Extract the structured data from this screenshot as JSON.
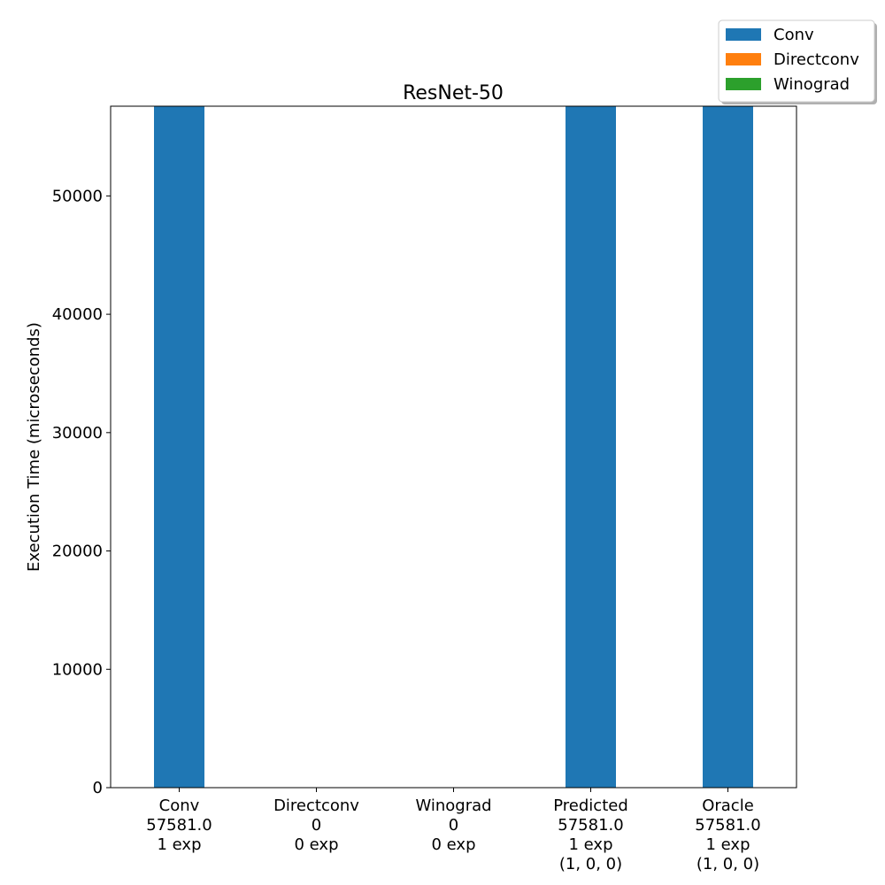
{
  "chart_data": {
    "type": "bar",
    "title": "ResNet-50",
    "xlabel": "",
    "ylabel": "Execution Time (microseconds)",
    "ylim": [
      0,
      57581
    ],
    "yticks": [
      0,
      10000,
      20000,
      30000,
      40000,
      50000
    ],
    "categories": [
      "Conv",
      "Directconv",
      "Winograd",
      "Predicted",
      "Oracle"
    ],
    "category_labels": [
      [
        "Conv",
        "57581.0",
        "1 exp"
      ],
      [
        "Directconv",
        "0",
        "0 exp"
      ],
      [
        "Winograd",
        "0",
        "0 exp"
      ],
      [
        "Predicted",
        "57581.0",
        "1 exp",
        "(1, 0, 0)"
      ],
      [
        "Oracle",
        "57581.0",
        "1 exp",
        "(1, 0, 0)"
      ]
    ],
    "stacked": true,
    "series": [
      {
        "name": "Conv",
        "color": "#1f77b4",
        "values": [
          57581,
          0,
          0,
          57581,
          57581
        ]
      },
      {
        "name": "Directconv",
        "color": "#ff7f0e",
        "values": [
          0,
          0,
          0,
          0,
          0
        ]
      },
      {
        "name": "Winograd",
        "color": "#2ca02c",
        "values": [
          0,
          0,
          0,
          0,
          0
        ]
      }
    ],
    "grid": false,
    "legend_position": "top-right"
  }
}
